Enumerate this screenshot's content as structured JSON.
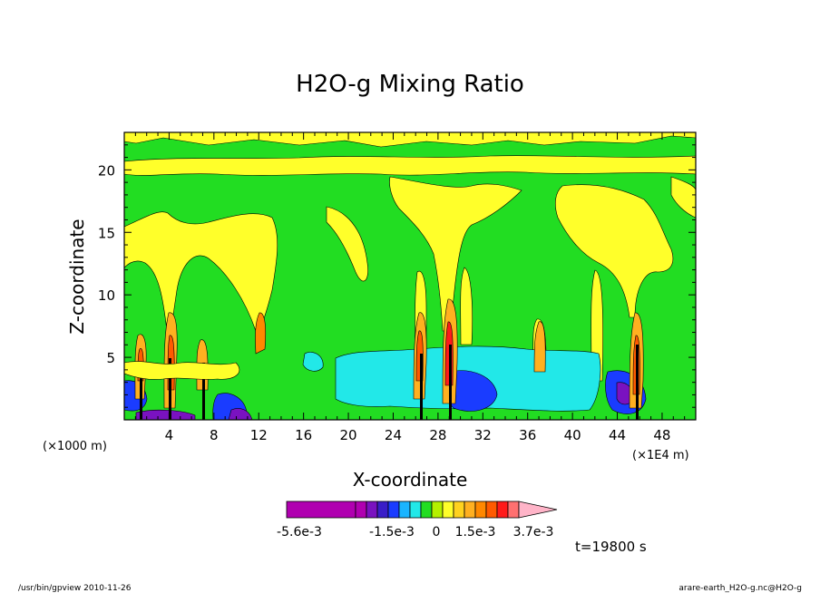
{
  "chart_data": {
    "type": "heatmap",
    "title": "H2O-g Mixing Ratio",
    "xlabel": "X-coordinate",
    "ylabel": "Z-coordinate",
    "x_unit_left": "(×1000 m)",
    "x_unit_right": "(×1E4 m)",
    "xlim": [
      0,
      51
    ],
    "ylim": [
      0,
      23
    ],
    "xticks": [
      4,
      8,
      12,
      16,
      20,
      24,
      28,
      32,
      36,
      40,
      44,
      48
    ],
    "yticks": [
      5,
      10,
      15,
      20
    ],
    "colorbar": {
      "colors": [
        "#b000b0",
        "#b000b0",
        "#7a12c0",
        "#3a1ec8",
        "#1a3cff",
        "#1ab4ff",
        "#22e8e8",
        "#22dd22",
        "#b4f000",
        "#ffff2a",
        "#ffd21e",
        "#ffb020",
        "#ff8800",
        "#ff5a00",
        "#ff1a1a",
        "#ff7070",
        "#ffb4c8"
      ],
      "labels": [
        "-5.6e-3",
        "-1.5e-3",
        "0",
        "1.5e-3",
        "3.7e-3"
      ]
    },
    "time_label": "t=19800 s",
    "contour_description": "Mostly green field with yellow layers near z=18-22 and convective plumes near x=4, 8, 12, 27, 29, 37, 46; cyan negative region x=19-43 below z=5"
  },
  "footer": {
    "left": "/usr/bin/gpview   2010-11-26",
    "right": "arare-earth_H2O-g.nc@H2O-g"
  }
}
